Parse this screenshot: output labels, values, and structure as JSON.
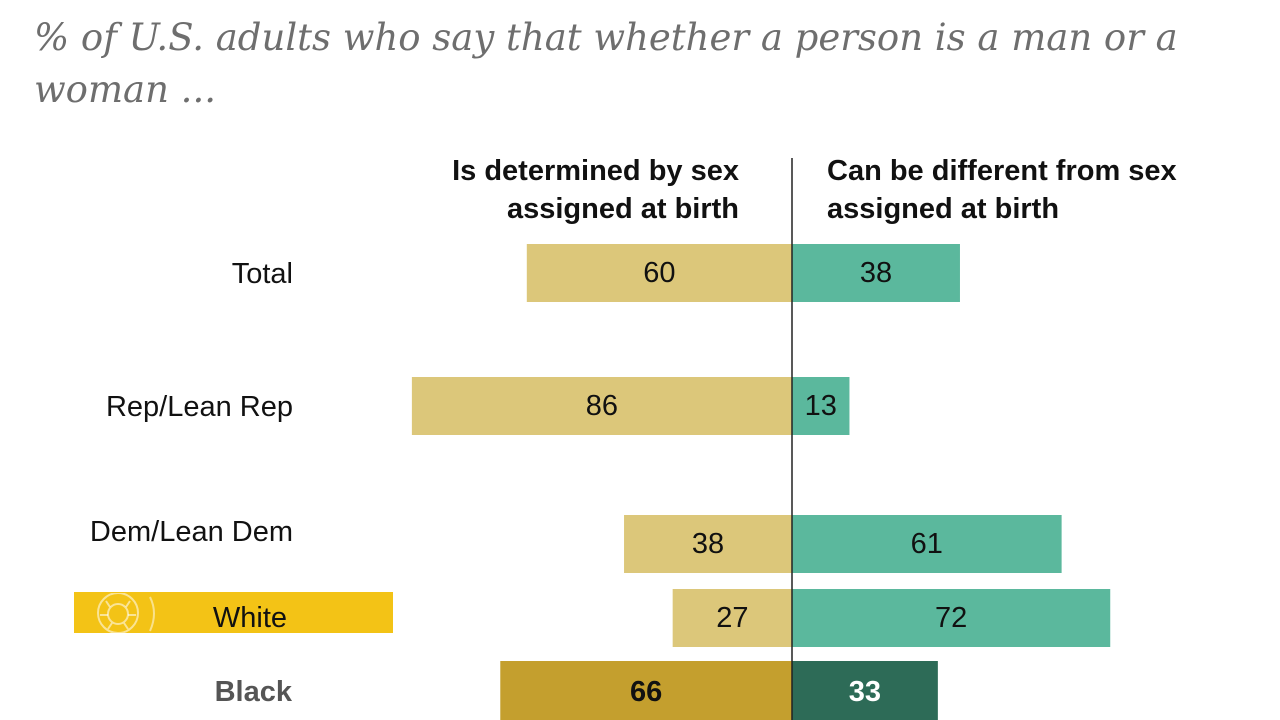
{
  "subtitle": "% of U.S. adults who say that whether a person is a man or a woman ...",
  "column_headers": {
    "left": "Is determined by sex assigned at birth",
    "right": "Can be different from sex assigned at birth"
  },
  "colors": {
    "left_bar": "#dcc77a",
    "right_bar": "#5bb89d",
    "left_bar_highlight": "#c49f2e",
    "right_bar_highlight": "#2d6b57",
    "badge": "#f3c316",
    "badge_text": "#5a6a1a"
  },
  "chart_data": {
    "type": "bar",
    "orientation": "horizontal-diverging",
    "title": "% of U.S. adults who say that whether a person is a man or a woman ...",
    "categories": [
      "Total",
      "Rep/Lean Rep",
      "Dem/Lean Dem",
      "White",
      "Black"
    ],
    "series": [
      {
        "name": "Is determined by sex assigned at birth",
        "values": [
          60,
          86,
          38,
          27,
          66
        ]
      },
      {
        "name": "Can be different from sex assigned at birth",
        "values": [
          38,
          13,
          61,
          72,
          33
        ]
      }
    ],
    "highlighted_category": "Black",
    "xlim": [
      0,
      100
    ]
  }
}
